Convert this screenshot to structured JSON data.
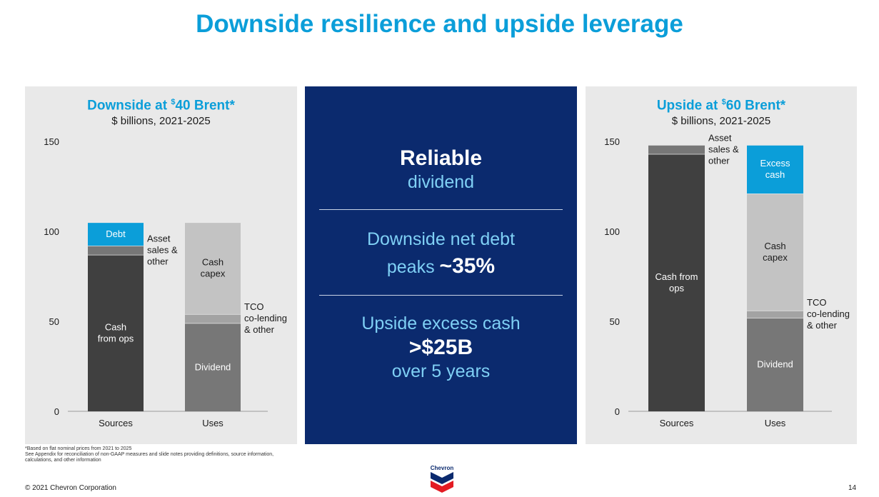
{
  "title": "Downside resilience and upside leverage",
  "panels": {
    "left": {
      "title_prefix": "Downside at ",
      "title_sup": "$",
      "title_rest": "40 Brent*",
      "subtitle": "$ billions, 2021-2025"
    },
    "right": {
      "title_prefix": "Upside at ",
      "title_sup": "$",
      "title_rest": "60 Brent*",
      "subtitle": "$ billions, 2021-2025"
    }
  },
  "middle": {
    "block1_bold": "Reliable",
    "block1_text": "dividend",
    "block2_line1": "Downside net debt",
    "block2_line2_pre": "peaks ",
    "block2_line2_bold": "~35%",
    "block3_line1": "Upside excess cash",
    "block3_bold": ">$25B",
    "block3_line3": "over 5 years"
  },
  "footnote": {
    "line1": "*Based on flat nominal prices from 2021 to 2025",
    "line2": "See Appendix for reconciliation of non-GAAP measures and slide notes providing definitions, source information, calculations, and other information"
  },
  "footer": {
    "copyright": "© 2021 Chevron Corporation",
    "page": "14",
    "logo_text": "Chevron"
  },
  "colors": {
    "title_blue": "#0b9ed9",
    "navy": "#0b2a6e",
    "dark_gray": "#404040",
    "mid_gray": "#777777",
    "light_gray": "#c3c3c3",
    "cash_blue": "#0b9ed9",
    "logo_red": "#e31b23"
  },
  "chart_data": [
    {
      "type": "bar",
      "stacked": true,
      "title": "Downside at $40 Brent*",
      "subtitle": "$ billions, 2021-2025",
      "categories": [
        "Sources",
        "Uses"
      ],
      "ylim": [
        0,
        150
      ],
      "yticks": [
        0,
        50,
        100,
        150
      ],
      "bars": [
        {
          "category": "Sources",
          "segments": [
            {
              "name": "Cash\nfrom ops",
              "value": 87,
              "color": "#404040"
            },
            {
              "name": "Asset\nsales &\nother",
              "value": 5,
              "color": "#777777",
              "label_side": "right"
            },
            {
              "name": "Debt",
              "value": 13,
              "color": "#0b9ed9"
            }
          ]
        },
        {
          "category": "Uses",
          "segments": [
            {
              "name": "Dividend",
              "value": 49,
              "color": "#777777"
            },
            {
              "name": "TCO\nco-lending\n& other",
              "value": 5,
              "color": "#a3a3a3",
              "label_side": "right"
            },
            {
              "name": "Cash\ncapex",
              "value": 51,
              "color": "#c3c3c3"
            }
          ]
        }
      ]
    },
    {
      "type": "bar",
      "stacked": true,
      "title": "Upside at $60 Brent*",
      "subtitle": "$ billions, 2021-2025",
      "categories": [
        "Sources",
        "Uses"
      ],
      "ylim": [
        0,
        150
      ],
      "yticks": [
        0,
        50,
        100,
        150
      ],
      "bars": [
        {
          "category": "Sources",
          "segments": [
            {
              "name": "Cash from\nops",
              "value": 143,
              "color": "#404040"
            },
            {
              "name": "Asset\nsales &\nother",
              "value": 5,
              "color": "#777777",
              "label_side": "right"
            }
          ]
        },
        {
          "category": "Uses",
          "segments": [
            {
              "name": "Dividend",
              "value": 52,
              "color": "#777777"
            },
            {
              "name": "TCO\nco-lending\n& other",
              "value": 4,
              "color": "#a3a3a3",
              "label_side": "right"
            },
            {
              "name": "Cash\ncapex",
              "value": 65,
              "color": "#c3c3c3"
            },
            {
              "name": "Excess\ncash",
              "value": 27,
              "color": "#0b9ed9"
            }
          ]
        }
      ]
    }
  ]
}
